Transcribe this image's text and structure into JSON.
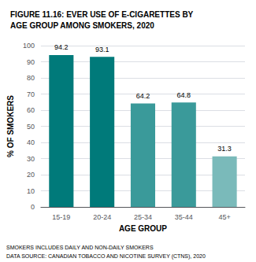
{
  "chart_data": {
    "type": "bar",
    "title": "FIGURE 11.16: EVER USE OF E-CIGARETTES BY\nAGE GROUP AMONG SMOKERS, 2020",
    "xlabel": "AGE GROUP",
    "ylabel": "% OF SMOKERS",
    "categories": [
      "15-19",
      "20-24",
      "25-34",
      "35-44",
      "45+"
    ],
    "values": [
      94.2,
      93.1,
      64.2,
      64.8,
      31.3
    ],
    "colors": [
      "#007a7a",
      "#007a7a",
      "#3a9a9a",
      "#3a9a9a",
      "#7ababa"
    ],
    "ylim": [
      0,
      100
    ],
    "yticks": [
      0,
      10,
      20,
      30,
      40,
      50,
      60,
      70,
      80,
      90,
      100
    ],
    "grid": true,
    "data_labels": true,
    "annotations": [
      "SMOKERS INCLUDES DAILY AND NON-DAILY SMOKERS",
      "DATA SOURCE: CANADIAN TOBACCO AND NICOTINE SURVEY (CTNS), 2020"
    ]
  }
}
